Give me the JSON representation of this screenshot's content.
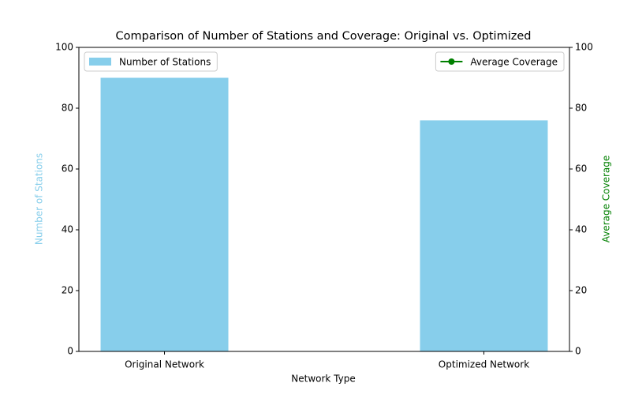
{
  "chart_data": {
    "type": "bar",
    "title": "Comparison of Number of Stations and Coverage: Original vs. Optimized",
    "x_label": "Network Type",
    "y_label": "Number of Stations",
    "y2_label": "Average Coverage",
    "categories": [
      "Original Network",
      "Optimized Network"
    ],
    "series": [
      {
        "name": "Number of Stations",
        "type": "bar",
        "color": "#87ceeb",
        "values": [
          90,
          76
        ],
        "legend": "upper left"
      },
      {
        "name": "Average Coverage",
        "type": "line",
        "axis": "y2",
        "color": "#008000",
        "values": [
          null,
          null
        ],
        "legend": "upper right"
      }
    ],
    "ylim": [
      0,
      100
    ],
    "yticks": [
      0,
      20,
      40,
      60,
      80,
      100
    ],
    "y2lim": [
      0,
      100
    ],
    "y2ticks": [
      0,
      20,
      40,
      60,
      80,
      100
    ],
    "y_label_color": "#87ceeb",
    "y2_label_color": "#008000"
  }
}
